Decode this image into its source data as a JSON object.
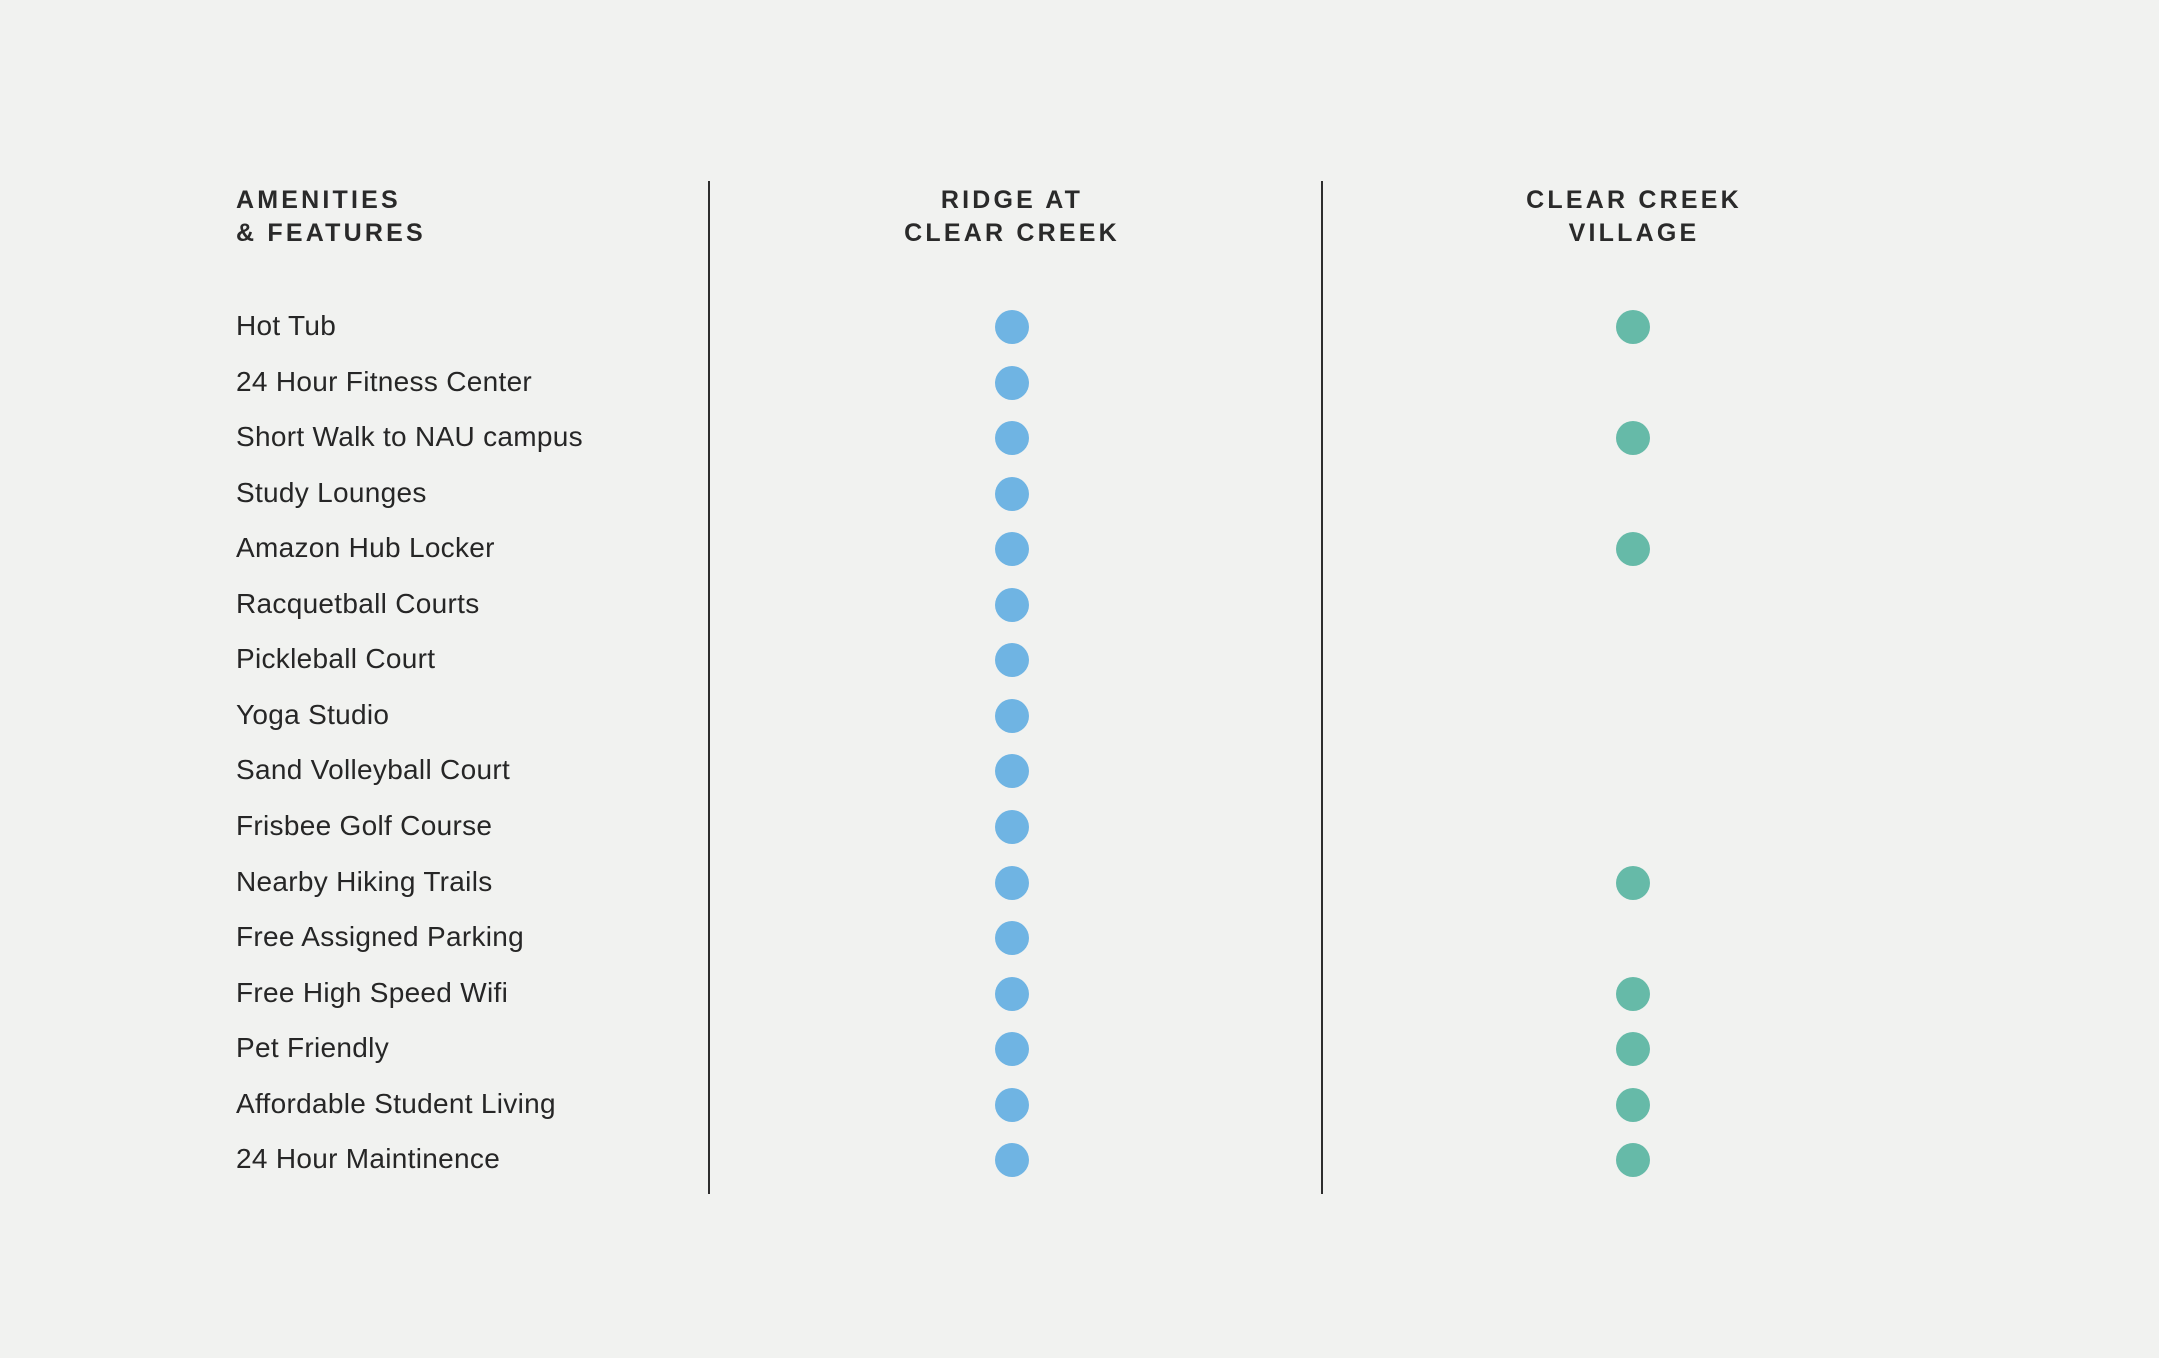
{
  "headers": {
    "features": [
      "AMENITIES",
      "& FEATURES"
    ],
    "ridge": [
      "RIDGE AT",
      "CLEAR CREEK"
    ],
    "village": [
      "CLEAR CREEK",
      "VILLAGE"
    ]
  },
  "colors": {
    "ridge": "#6fb4e3",
    "village": "#66baa8",
    "divider": "#2e2e2e",
    "background": "#f1f2f0"
  },
  "rows": [
    {
      "label": "Hot Tub",
      "ridge": true,
      "village": true
    },
    {
      "label": "24 Hour Fitness Center",
      "ridge": true,
      "village": false
    },
    {
      "label": "Short Walk to NAU campus",
      "ridge": true,
      "village": true
    },
    {
      "label": "Study Lounges",
      "ridge": true,
      "village": false
    },
    {
      "label": "Amazon Hub Locker",
      "ridge": true,
      "village": true
    },
    {
      "label": "Racquetball Courts",
      "ridge": true,
      "village": false
    },
    {
      "label": "Pickleball Court",
      "ridge": true,
      "village": false
    },
    {
      "label": "Yoga Studio",
      "ridge": true,
      "village": false
    },
    {
      "label": "Sand Volleyball Court",
      "ridge": true,
      "village": false
    },
    {
      "label": "Frisbee Golf Course",
      "ridge": true,
      "village": false
    },
    {
      "label": "Nearby Hiking Trails",
      "ridge": true,
      "village": true
    },
    {
      "label": "Free Assigned Parking",
      "ridge": true,
      "village": false
    },
    {
      "label": "Free High Speed Wifi",
      "ridge": true,
      "village": true
    },
    {
      "label": "Pet Friendly",
      "ridge": true,
      "village": true
    },
    {
      "label": "Affordable Student Living",
      "ridge": true,
      "village": true
    },
    {
      "label": "24 Hour Maintinence",
      "ridge": true,
      "village": true
    }
  ]
}
